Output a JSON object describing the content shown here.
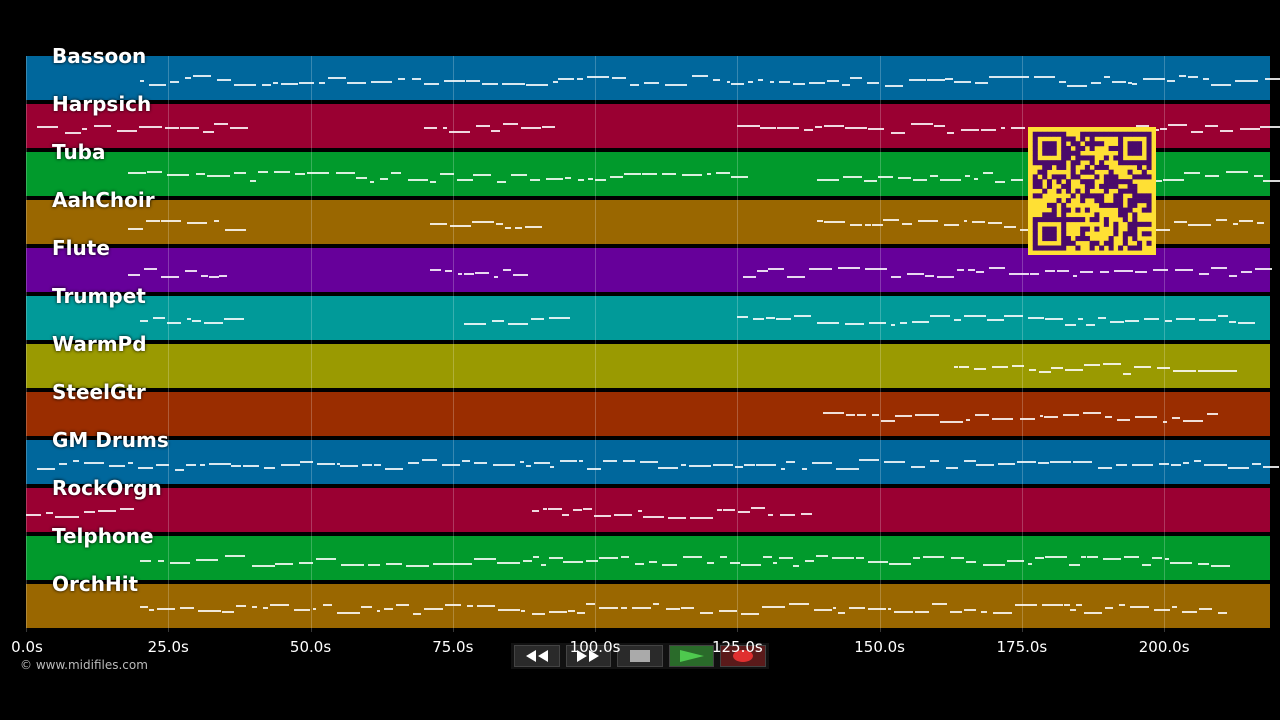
{
  "tracks": [
    {
      "name": "Bassoon",
      "color": "#00679c"
    },
    {
      "name": "Harpsich",
      "color": "#9a0032"
    },
    {
      "name": "Tuba",
      "color": "#019a2c"
    },
    {
      "name": "AahChoir",
      "color": "#9a6700"
    },
    {
      "name": "Flute",
      "color": "#66009a"
    },
    {
      "name": "Trumpet",
      "color": "#019a99"
    },
    {
      "name": "WarmPd",
      "color": "#9a9a01"
    },
    {
      "name": "SteelGtr",
      "color": "#9a2d00"
    },
    {
      "name": "GM Drums",
      "color": "#00679c"
    },
    {
      "name": "RockOrgn",
      "color": "#9a0032"
    },
    {
      "name": "Telphone",
      "color": "#019a2c"
    },
    {
      "name": "OrchHit",
      "color": "#9a6700"
    }
  ],
  "timeline": {
    "ticks": [
      "0.0s",
      "25.0s",
      "50.0s",
      "75.0s",
      "100.0s",
      "125.0s",
      "150.0s",
      "175.0s",
      "200.0s"
    ],
    "tick_values": [
      0,
      25,
      50,
      75,
      100,
      125,
      150,
      175,
      200
    ],
    "max_seconds": 218.6
  },
  "copyright": "© www.midifiles.com",
  "transport": {
    "rewind_icon": "rewind-icon",
    "forward_icon": "fast-forward-icon",
    "stop_icon": "stop-icon",
    "play_icon": "play-icon",
    "record_icon": "record-icon"
  },
  "qr_color": "#ffe034",
  "qr_fg": "#4a0a6a"
}
